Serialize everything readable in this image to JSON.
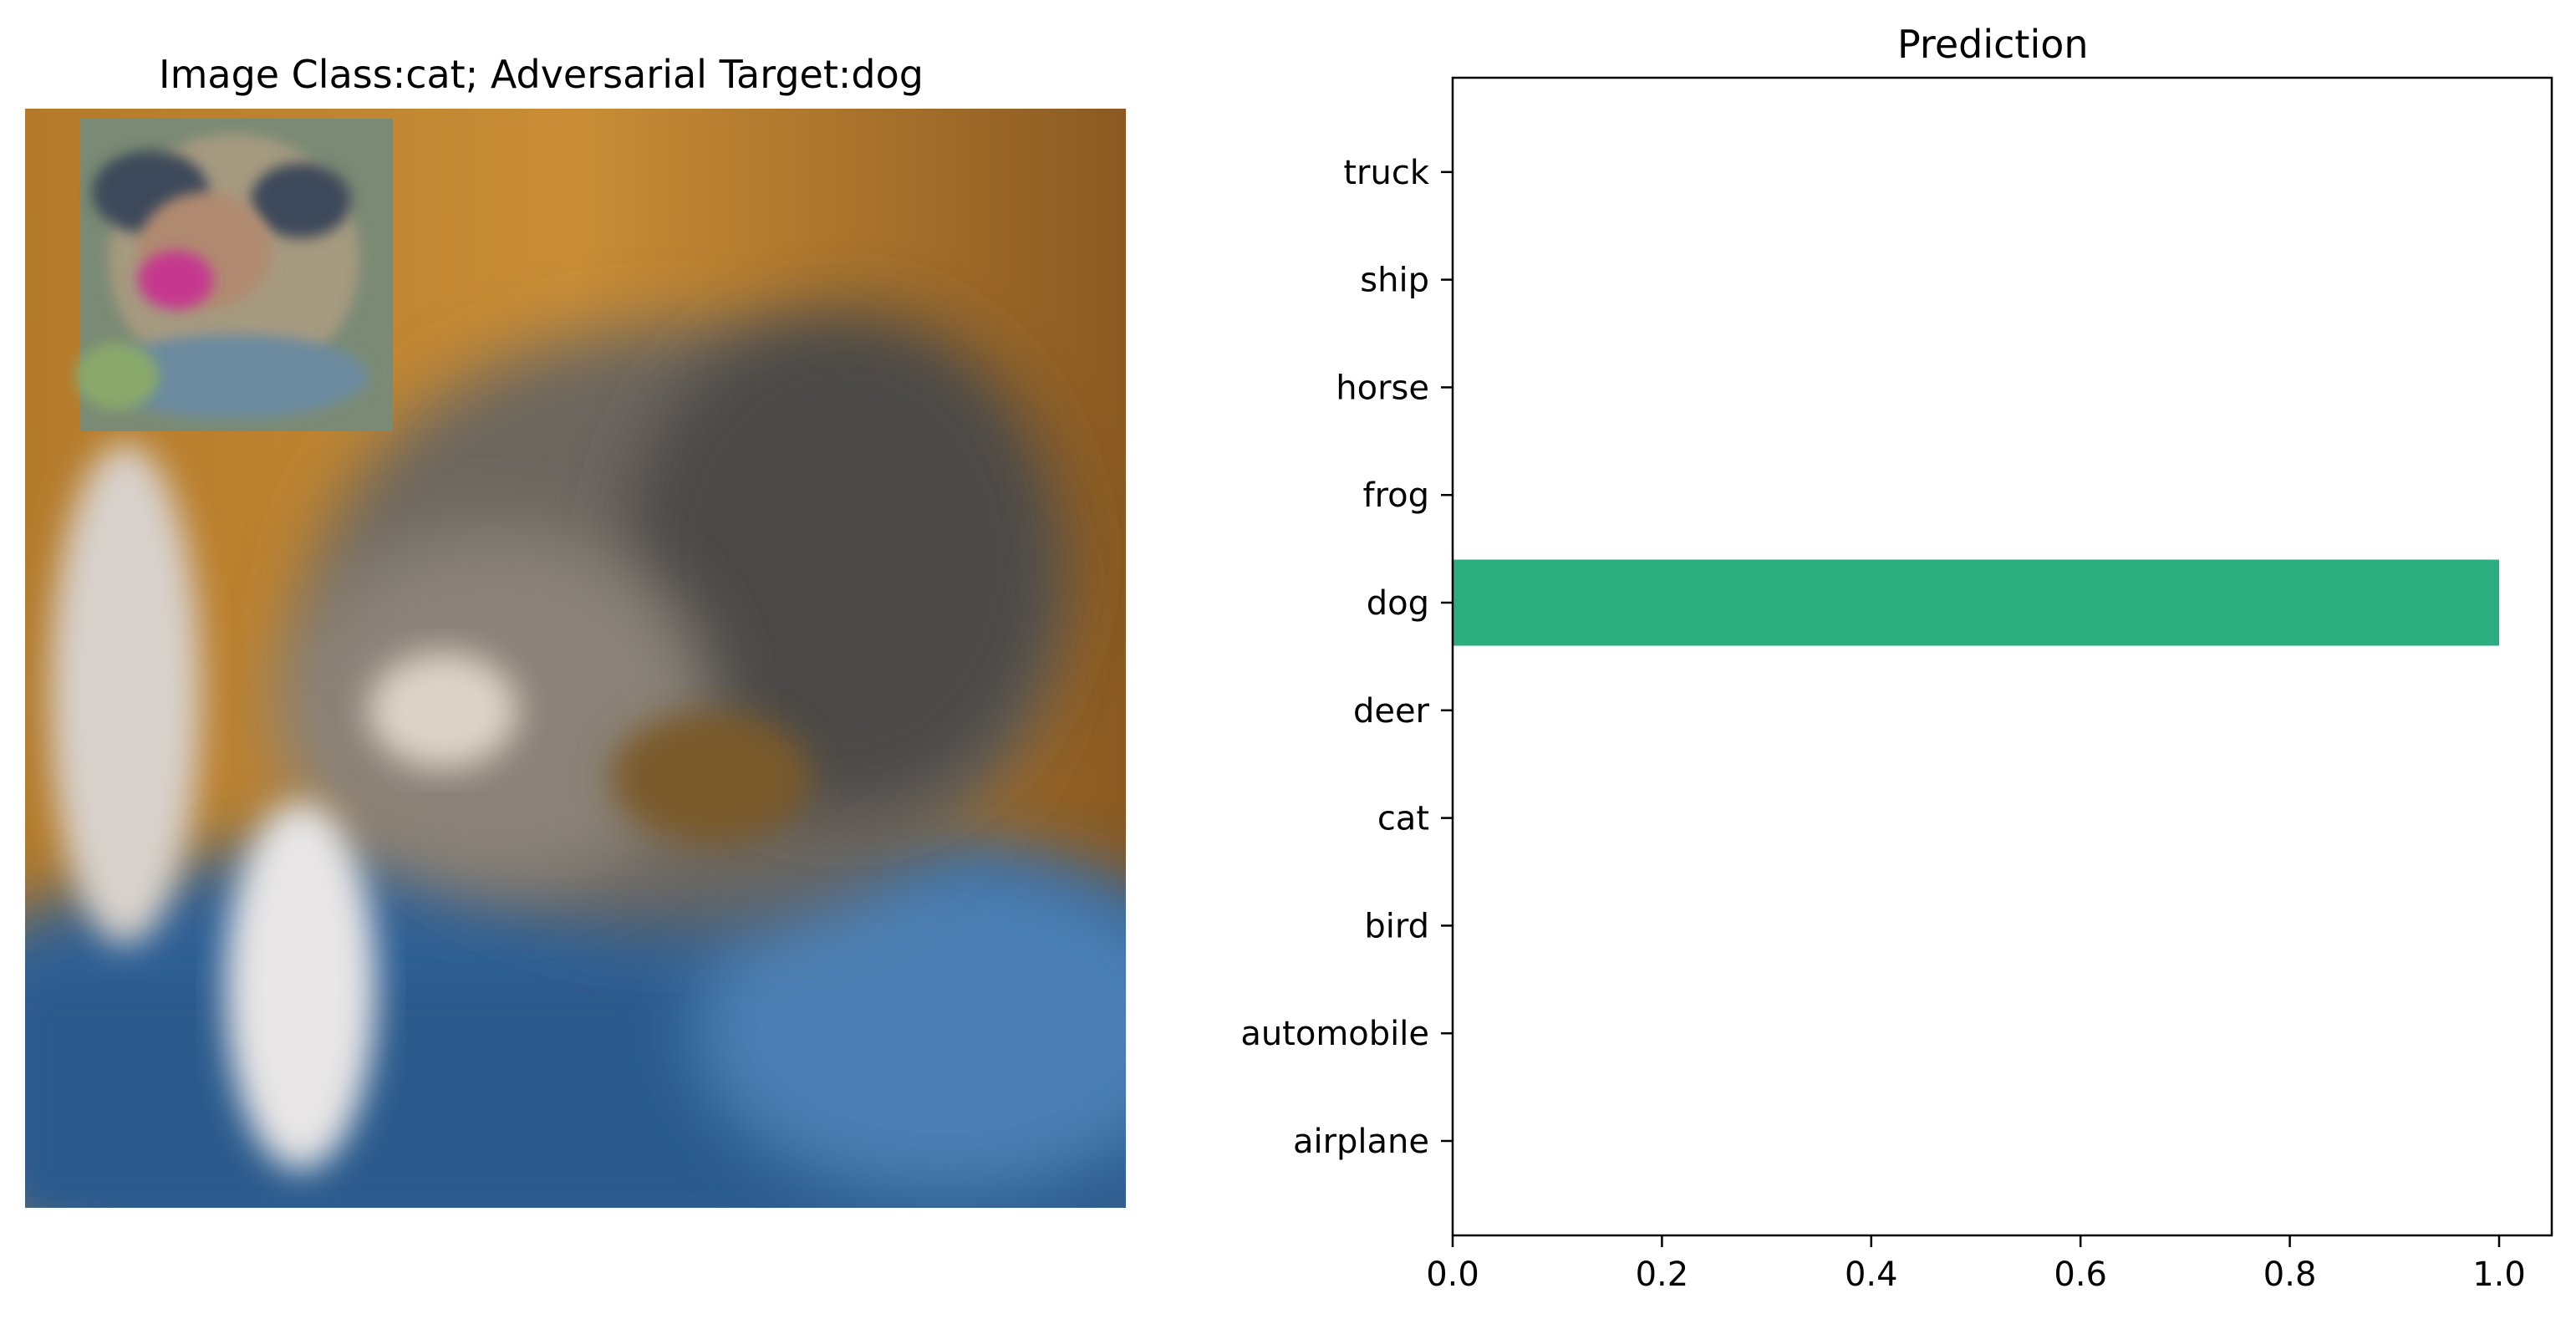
{
  "image_panel": {
    "title": "Image Class:cat; Adversarial Target:dog"
  },
  "colors": {
    "bar": "#2aae80"
  },
  "chart_data": {
    "type": "bar",
    "orientation": "horizontal",
    "title": "Prediction",
    "categories": [
      "airplane",
      "automobile",
      "bird",
      "cat",
      "deer",
      "dog",
      "frog",
      "horse",
      "ship",
      "truck"
    ],
    "values": [
      0.0,
      0.0,
      0.0,
      0.0,
      0.0,
      1.0,
      0.0,
      0.0,
      0.0,
      0.0
    ],
    "xlim": [
      0.0,
      1.05
    ],
    "xticks": [
      "0.0",
      "0.2",
      "0.4",
      "0.6",
      "0.8",
      "1.0"
    ],
    "xlabel": "",
    "ylabel": "",
    "grid": false
  }
}
